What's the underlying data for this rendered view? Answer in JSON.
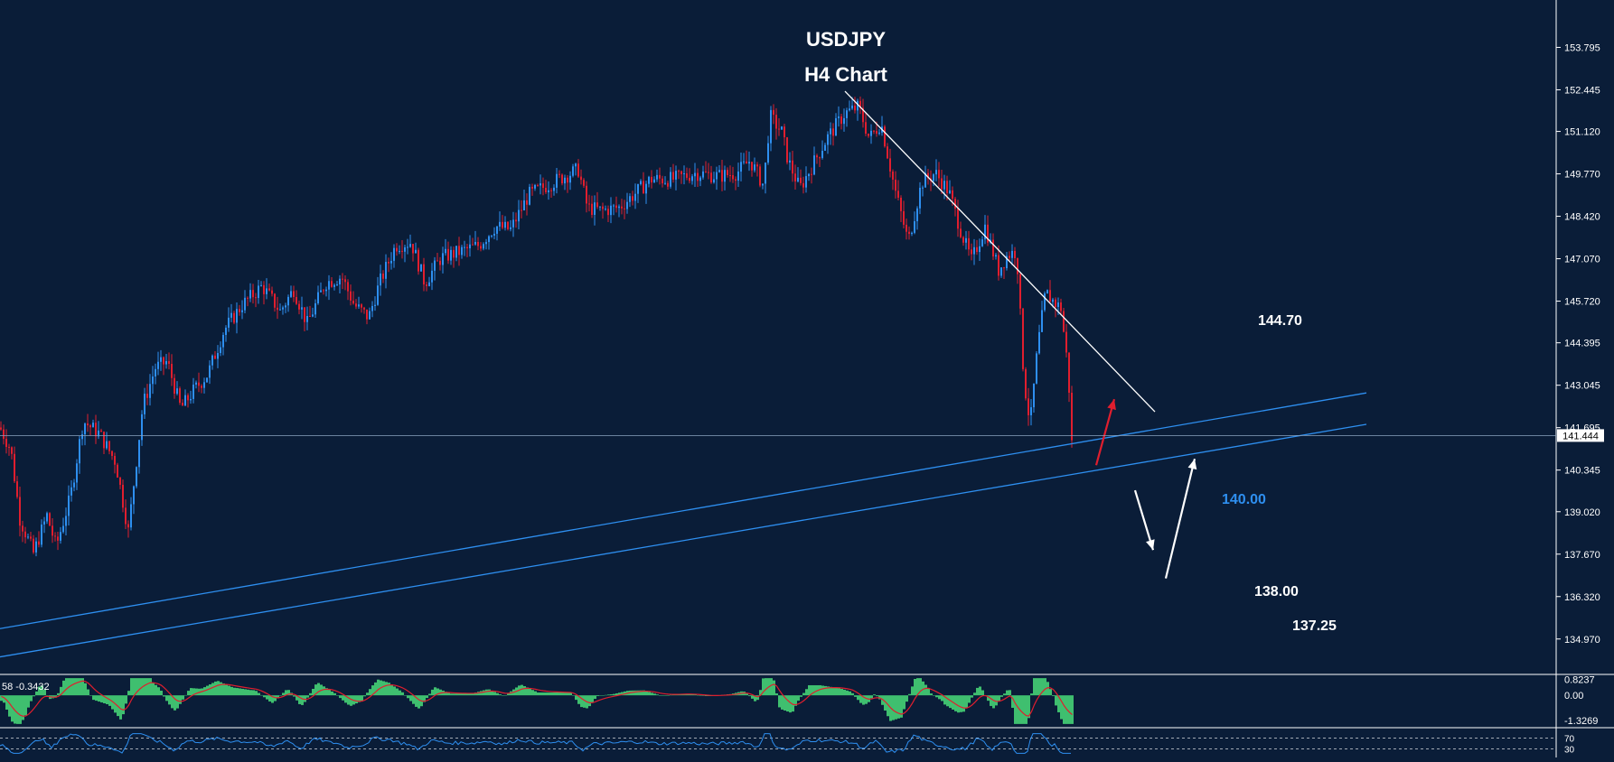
{
  "theme": {
    "background": "#0a1d38",
    "bull_color": "#2e8ff0",
    "bear_color": "#e01e2e",
    "axis_text": "#ffffff",
    "trendline_support": "#2e8ff0",
    "trendline_resistance": "#ffffff",
    "histogram_color": "#3fbf6f",
    "signal_color": "#e01e2e",
    "rsi_color": "#2e8ff0"
  },
  "header": {
    "title": "USDJPY",
    "subtitle": "H4 Chart"
  },
  "chart_data": {
    "type": "candlestick",
    "symbol": "USDJPY",
    "timeframe": "H4",
    "ylim": [
      133.9,
      154.9
    ],
    "y_ticks": [
      "153.795",
      "152.445",
      "151.120",
      "149.770",
      "148.420",
      "147.070",
      "145.720",
      "144.395",
      "143.045",
      "141.695",
      "140.345",
      "139.020",
      "137.670",
      "136.320",
      "134.970"
    ],
    "current_price": "141.444",
    "price_path": [
      [
        0,
        141.7
      ],
      [
        12,
        141.0
      ],
      [
        22,
        138.8
      ],
      [
        37,
        137.7
      ],
      [
        52,
        138.9
      ],
      [
        62,
        137.9
      ],
      [
        78,
        139.5
      ],
      [
        92,
        141.9
      ],
      [
        110,
        141.5
      ],
      [
        128,
        140.6
      ],
      [
        142,
        138.4
      ],
      [
        158,
        142.4
      ],
      [
        172,
        143.6
      ],
      [
        185,
        143.8
      ],
      [
        200,
        142.3
      ],
      [
        215,
        142.9
      ],
      [
        230,
        143.4
      ],
      [
        248,
        144.8
      ],
      [
        268,
        145.6
      ],
      [
        290,
        146.2
      ],
      [
        310,
        145.4
      ],
      [
        325,
        146.1
      ],
      [
        340,
        145.0
      ],
      [
        360,
        146.3
      ],
      [
        378,
        146.5
      ],
      [
        392,
        145.6
      ],
      [
        408,
        145.2
      ],
      [
        420,
        146.3
      ],
      [
        438,
        147.5
      ],
      [
        455,
        147.6
      ],
      [
        470,
        146.3
      ],
      [
        488,
        147.1
      ],
      [
        510,
        147.3
      ],
      [
        530,
        147.5
      ],
      [
        548,
        148.1
      ],
      [
        565,
        148.0
      ],
      [
        585,
        149.1
      ],
      [
        605,
        149.4
      ],
      [
        625,
        149.7
      ],
      [
        640,
        149.9
      ],
      [
        650,
        148.7
      ],
      [
        665,
        148.6
      ],
      [
        685,
        148.7
      ],
      [
        705,
        149.2
      ],
      [
        720,
        149.6
      ],
      [
        745,
        149.6
      ],
      [
        770,
        149.8
      ],
      [
        795,
        149.7
      ],
      [
        815,
        149.8
      ],
      [
        830,
        150.2
      ],
      [
        845,
        149.4
      ],
      [
        852,
        151.6
      ],
      [
        865,
        151.1
      ],
      [
        872,
        150.2
      ],
      [
        885,
        149.3
      ],
      [
        900,
        150.1
      ],
      [
        915,
        150.9
      ],
      [
        935,
        151.7
      ],
      [
        950,
        151.9
      ],
      [
        962,
        150.9
      ],
      [
        975,
        151.4
      ],
      [
        990,
        149.3
      ],
      [
        1005,
        147.6
      ],
      [
        1020,
        149.5
      ],
      [
        1035,
        149.8
      ],
      [
        1050,
        149.2
      ],
      [
        1065,
        147.8
      ],
      [
        1075,
        147.0
      ],
      [
        1090,
        148.1
      ],
      [
        1105,
        146.7
      ],
      [
        1115,
        147.2
      ],
      [
        1125,
        147.3
      ],
      [
        1133,
        143.2
      ],
      [
        1140,
        141.8
      ],
      [
        1148,
        144.2
      ],
      [
        1157,
        146.0
      ],
      [
        1166,
        145.7
      ],
      [
        1174,
        145.5
      ],
      [
        1182,
        143.5
      ],
      [
        1186,
        141.2
      ]
    ],
    "resistance_line": {
      "x": [
        935,
        1278
      ],
      "y": [
        152.4,
        142.2
      ]
    },
    "support_lines": [
      {
        "x": [
          0,
          1512
        ],
        "y": [
          135.3,
          142.8
        ]
      },
      {
        "x": [
          0,
          1512
        ],
        "y": [
          134.4,
          141.8
        ]
      }
    ],
    "annotations": [
      {
        "text": "144.70",
        "color": "#ffffff"
      },
      {
        "text": "140.00",
        "color": "#2e8ff0"
      },
      {
        "text": "138.00",
        "color": "#ffffff"
      },
      {
        "text": "137.25",
        "color": "#ffffff"
      }
    ],
    "arrows": [
      {
        "color": "#e01e2e",
        "from": [
          1213,
          140.5
        ],
        "to": [
          1233,
          142.6
        ]
      },
      {
        "color": "#ffffff",
        "from": [
          1256,
          139.7
        ],
        "to": [
          1276,
          137.8
        ]
      },
      {
        "color": "#ffffff",
        "from": [
          1290,
          136.9
        ],
        "to": [
          1322,
          140.7
        ]
      }
    ],
    "macd": {
      "label": "58 -0.3432",
      "y_ticks": [
        "0.8237",
        "0.00",
        "-1.3269"
      ],
      "ylim": [
        -1.6,
        1.0
      ]
    },
    "rsi": {
      "y_ticks": [
        "70",
        "30"
      ],
      "ylim": [
        0,
        100
      ]
    }
  }
}
